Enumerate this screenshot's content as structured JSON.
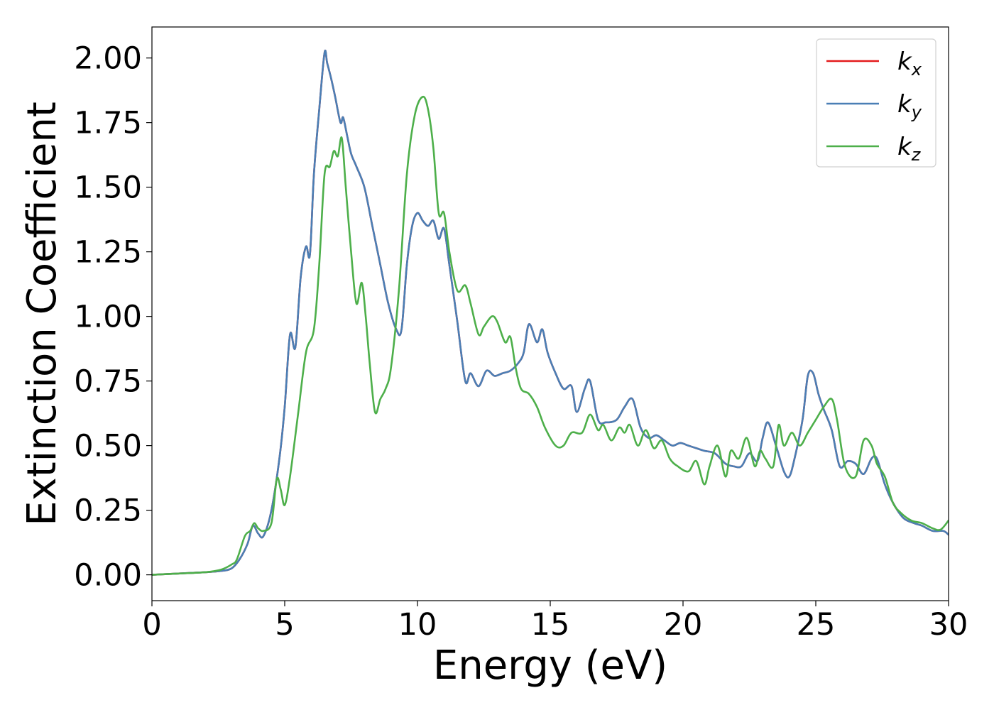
{
  "chart_data": {
    "type": "line",
    "title": "",
    "xlabel": "Energy (eV)",
    "ylabel": "Extinction Coefficient",
    "xlim": [
      0,
      30
    ],
    "ylim": [
      -0.1,
      2.12
    ],
    "xticks": [
      0,
      5,
      10,
      15,
      20,
      25,
      30
    ],
    "xtick_labels": [
      "0",
      "5",
      "10",
      "15",
      "20",
      "25",
      "30"
    ],
    "yticks": [
      0,
      0.25,
      0.5,
      0.75,
      1.0,
      1.25,
      1.5,
      1.75,
      2.0
    ],
    "ytick_labels": [
      "0.00",
      "0.25",
      "0.50",
      "0.75",
      "1.00",
      "1.25",
      "1.50",
      "1.75",
      "2.00"
    ],
    "grid": false,
    "legend": {
      "placement": "top-right"
    },
    "series": [
      {
        "name": "kx",
        "legend_main": "k",
        "legend_sub": "x",
        "color": "#e41a1c",
        "x": [
          0,
          1,
          2,
          2.6,
          3,
          3.3,
          3.6,
          3.8,
          4,
          4.2,
          4.5,
          4.8,
          5,
          5.2,
          5.4,
          5.6,
          5.8,
          5.95,
          6.1,
          6.3,
          6.5,
          6.6,
          6.75,
          6.9,
          7.1,
          7.2,
          7.35,
          7.5,
          7.7,
          8,
          8.3,
          8.6,
          8.9,
          9.2,
          9.4,
          9.6,
          9.8,
          10,
          10.2,
          10.4,
          10.6,
          10.8,
          11,
          11.2,
          11.5,
          11.8,
          12,
          12.3,
          12.6,
          12.9,
          13.2,
          13.5,
          13.8,
          14,
          14.2,
          14.5,
          14.7,
          14.9,
          15.2,
          15.5,
          15.8,
          16,
          16.3,
          16.5,
          16.8,
          17.1,
          17.5,
          17.8,
          18.1,
          18.4,
          18.7,
          19,
          19.3,
          19.6,
          19.9,
          20.2,
          20.5,
          20.8,
          21.2,
          21.6,
          21.9,
          22.2,
          22.5,
          22.8,
          23,
          23.2,
          23.5,
          23.8,
          24,
          24.2,
          24.5,
          24.7,
          24.9,
          25.1,
          25.3,
          25.6,
          25.9,
          26.2,
          26.5,
          26.8,
          27.1,
          27.3,
          27.6,
          27.9,
          28.3,
          28.7,
          29,
          29.4,
          29.8,
          30
        ],
        "y": [
          0,
          0.005,
          0.01,
          0.015,
          0.025,
          0.06,
          0.12,
          0.19,
          0.16,
          0.15,
          0.25,
          0.45,
          0.65,
          0.93,
          0.88,
          1.15,
          1.27,
          1.24,
          1.55,
          1.8,
          2.02,
          1.98,
          1.92,
          1.85,
          1.75,
          1.77,
          1.7,
          1.63,
          1.58,
          1.5,
          1.35,
          1.2,
          1.05,
          0.95,
          0.95,
          1.2,
          1.35,
          1.4,
          1.37,
          1.35,
          1.37,
          1.3,
          1.34,
          1.2,
          0.98,
          0.75,
          0.78,
          0.73,
          0.79,
          0.77,
          0.78,
          0.79,
          0.82,
          0.86,
          0.97,
          0.9,
          0.95,
          0.86,
          0.78,
          0.72,
          0.73,
          0.63,
          0.72,
          0.75,
          0.6,
          0.59,
          0.6,
          0.65,
          0.68,
          0.57,
          0.53,
          0.54,
          0.52,
          0.5,
          0.51,
          0.5,
          0.49,
          0.48,
          0.47,
          0.43,
          0.42,
          0.42,
          0.47,
          0.44,
          0.53,
          0.59,
          0.5,
          0.4,
          0.38,
          0.45,
          0.6,
          0.77,
          0.78,
          0.7,
          0.64,
          0.56,
          0.42,
          0.44,
          0.43,
          0.39,
          0.45,
          0.45,
          0.35,
          0.28,
          0.22,
          0.2,
          0.19,
          0.17,
          0.17,
          0.155
        ]
      },
      {
        "name": "ky",
        "legend_main": "k",
        "legend_sub": "y",
        "color": "#4a7fb5",
        "x": [
          0,
          1,
          2,
          2.6,
          3,
          3.3,
          3.6,
          3.8,
          4,
          4.2,
          4.5,
          4.8,
          5,
          5.2,
          5.4,
          5.6,
          5.8,
          5.95,
          6.1,
          6.3,
          6.5,
          6.6,
          6.75,
          6.9,
          7.1,
          7.2,
          7.35,
          7.5,
          7.7,
          8,
          8.3,
          8.6,
          8.9,
          9.2,
          9.4,
          9.6,
          9.8,
          10,
          10.2,
          10.4,
          10.6,
          10.8,
          11,
          11.2,
          11.5,
          11.8,
          12,
          12.3,
          12.6,
          12.9,
          13.2,
          13.5,
          13.8,
          14,
          14.2,
          14.5,
          14.7,
          14.9,
          15.2,
          15.5,
          15.8,
          16,
          16.3,
          16.5,
          16.8,
          17.1,
          17.5,
          17.8,
          18.1,
          18.4,
          18.7,
          19,
          19.3,
          19.6,
          19.9,
          20.2,
          20.5,
          20.8,
          21.2,
          21.6,
          21.9,
          22.2,
          22.5,
          22.8,
          23,
          23.2,
          23.5,
          23.8,
          24,
          24.2,
          24.5,
          24.7,
          24.9,
          25.1,
          25.3,
          25.6,
          25.9,
          26.2,
          26.5,
          26.8,
          27.1,
          27.3,
          27.6,
          27.9,
          28.3,
          28.7,
          29,
          29.4,
          29.8,
          30
        ],
        "y": [
          0,
          0.005,
          0.01,
          0.015,
          0.025,
          0.06,
          0.12,
          0.19,
          0.16,
          0.15,
          0.25,
          0.45,
          0.65,
          0.93,
          0.88,
          1.15,
          1.27,
          1.24,
          1.55,
          1.8,
          2.02,
          1.98,
          1.92,
          1.85,
          1.75,
          1.77,
          1.7,
          1.63,
          1.58,
          1.5,
          1.35,
          1.2,
          1.05,
          0.95,
          0.95,
          1.2,
          1.35,
          1.4,
          1.37,
          1.35,
          1.37,
          1.3,
          1.34,
          1.2,
          0.98,
          0.75,
          0.78,
          0.73,
          0.79,
          0.77,
          0.78,
          0.79,
          0.82,
          0.86,
          0.97,
          0.9,
          0.95,
          0.86,
          0.78,
          0.72,
          0.73,
          0.63,
          0.72,
          0.75,
          0.6,
          0.59,
          0.6,
          0.65,
          0.68,
          0.57,
          0.53,
          0.54,
          0.52,
          0.5,
          0.51,
          0.5,
          0.49,
          0.48,
          0.47,
          0.43,
          0.42,
          0.42,
          0.47,
          0.44,
          0.53,
          0.59,
          0.5,
          0.4,
          0.38,
          0.45,
          0.6,
          0.77,
          0.78,
          0.7,
          0.64,
          0.56,
          0.42,
          0.44,
          0.43,
          0.39,
          0.45,
          0.45,
          0.35,
          0.28,
          0.22,
          0.2,
          0.19,
          0.17,
          0.17,
          0.155
        ]
      },
      {
        "name": "kz",
        "legend_main": "k",
        "legend_sub": "z",
        "color": "#4daf4a",
        "x": [
          0,
          1,
          2,
          2.6,
          3,
          3.2,
          3.5,
          3.7,
          3.85,
          4,
          4.2,
          4.5,
          4.7,
          4.85,
          5,
          5.2,
          5.5,
          5.8,
          6.1,
          6.3,
          6.5,
          6.7,
          6.85,
          7,
          7.15,
          7.3,
          7.5,
          7.7,
          7.9,
          8.05,
          8.2,
          8.4,
          8.6,
          8.8,
          9,
          9.3,
          9.6,
          9.9,
          10.2,
          10.4,
          10.6,
          10.8,
          11,
          11.2,
          11.5,
          11.8,
          12,
          12.3,
          12.5,
          12.8,
          13,
          13.3,
          13.5,
          13.7,
          13.9,
          14.2,
          14.5,
          14.8,
          15.2,
          15.5,
          15.8,
          16.2,
          16.5,
          16.8,
          17,
          17.3,
          17.6,
          17.8,
          18,
          18.3,
          18.6,
          18.9,
          19.2,
          19.5,
          19.8,
          20.2,
          20.5,
          20.8,
          21,
          21.3,
          21.6,
          21.8,
          22.1,
          22.4,
          22.7,
          22.9,
          23.1,
          23.4,
          23.6,
          23.8,
          24.1,
          24.4,
          24.7,
          25,
          25.3,
          25.6,
          25.8,
          26.1,
          26.5,
          26.8,
          27.1,
          27.3,
          27.6,
          27.9,
          28.2,
          28.6,
          29,
          29.4,
          29.7,
          30
        ],
        "y": [
          0,
          0.005,
          0.01,
          0.02,
          0.04,
          0.06,
          0.15,
          0.17,
          0.2,
          0.18,
          0.17,
          0.2,
          0.37,
          0.33,
          0.27,
          0.38,
          0.62,
          0.86,
          0.95,
          1.2,
          1.55,
          1.58,
          1.64,
          1.62,
          1.69,
          1.5,
          1.25,
          1.05,
          1.13,
          1.0,
          0.82,
          0.63,
          0.68,
          0.72,
          0.8,
          1.1,
          1.55,
          1.78,
          1.85,
          1.8,
          1.65,
          1.4,
          1.4,
          1.25,
          1.1,
          1.12,
          1.05,
          0.93,
          0.96,
          1.0,
          0.98,
          0.9,
          0.92,
          0.8,
          0.72,
          0.7,
          0.65,
          0.57,
          0.5,
          0.5,
          0.55,
          0.55,
          0.62,
          0.56,
          0.58,
          0.52,
          0.57,
          0.55,
          0.58,
          0.5,
          0.56,
          0.49,
          0.52,
          0.45,
          0.42,
          0.4,
          0.44,
          0.35,
          0.42,
          0.5,
          0.38,
          0.48,
          0.45,
          0.53,
          0.42,
          0.48,
          0.45,
          0.42,
          0.58,
          0.5,
          0.55,
          0.5,
          0.55,
          0.6,
          0.65,
          0.68,
          0.6,
          0.42,
          0.38,
          0.52,
          0.5,
          0.43,
          0.38,
          0.28,
          0.24,
          0.21,
          0.2,
          0.18,
          0.175,
          0.21
        ]
      }
    ]
  }
}
